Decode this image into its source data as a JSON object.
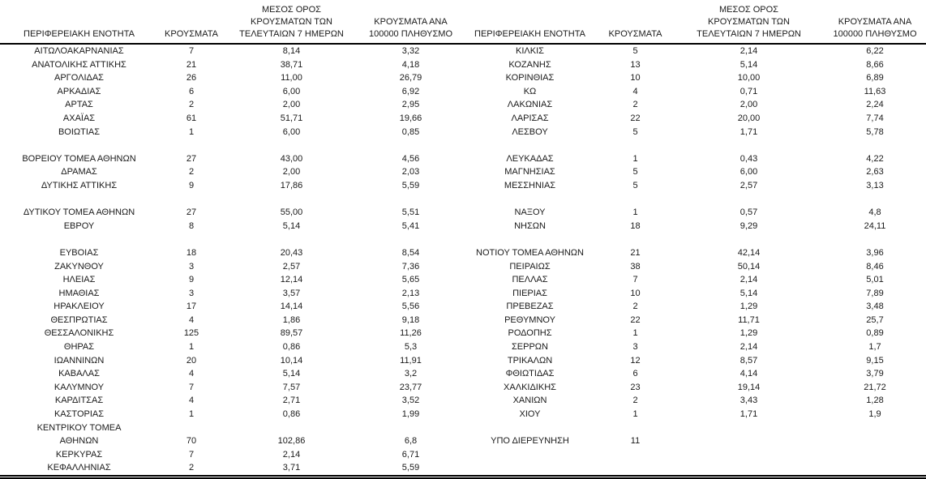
{
  "table": {
    "headers": {
      "region": "ΠΕΡΙΦΕΡΕΙΑΚΗ ΕΝΟΤΗΤΑ",
      "cases": "ΚΡΟΥΣΜΑΤΑ",
      "avg7": "ΜΕΣΟΣ ΟΡΟΣ\nΚΡΟΥΣΜΑΤΩΝ ΤΩΝ\nΤΕΛΕΥΤΑΙΩΝ 7 ΗΜΕΡΩΝ",
      "per100k": "ΚΡΟΥΣΜΑΤΑ ΑΝΑ\n100000 ΠΛΗΘΥΣΜΟ"
    },
    "left_rows": [
      [
        "ΑΙΤΩΛΟΑΚΑΡΝΑΝΙΑΣ",
        "7",
        "8,14",
        "3,32"
      ],
      [
        "ΑΝΑΤΟΛΙΚΗΣ ΑΤΤΙΚΗΣ",
        "21",
        "38,71",
        "4,18"
      ],
      [
        "ΑΡΓΟΛΙΔΑΣ",
        "26",
        "11,00",
        "26,79"
      ],
      [
        "ΑΡΚΑΔΙΑΣ",
        "6",
        "6,00",
        "6,92"
      ],
      [
        "ΑΡΤΑΣ",
        "2",
        "2,00",
        "2,95"
      ],
      [
        "ΑΧΑΪΑΣ",
        "61",
        "51,71",
        "19,66"
      ],
      [
        "ΒΟΙΩΤΙΑΣ",
        "1",
        "6,00",
        "0,85"
      ],
      [
        "",
        "",
        "",
        ""
      ],
      [
        "ΒΟΡΕΙΟΥ ΤΟΜΕΑ ΑΘΗΝΩΝ",
        "27",
        "43,00",
        "4,56"
      ],
      [
        "ΔΡΑΜΑΣ",
        "2",
        "2,00",
        "2,03"
      ],
      [
        "ΔΥΤΙΚΗΣ ΑΤΤΙΚΗΣ",
        "9",
        "17,86",
        "5,59"
      ],
      [
        "",
        "",
        "",
        ""
      ],
      [
        "ΔΥΤΙΚΟΥ ΤΟΜΕΑ ΑΘΗΝΩΝ",
        "27",
        "55,00",
        "5,51"
      ],
      [
        "ΕΒΡΟΥ",
        "8",
        "5,14",
        "5,41"
      ],
      [
        "",
        "",
        "",
        ""
      ],
      [
        "ΕΥΒΟΙΑΣ",
        "18",
        "20,43",
        "8,54"
      ],
      [
        "ΖΑΚΥΝΘΟΥ",
        "3",
        "2,57",
        "7,36"
      ],
      [
        "ΗΛΕΙΑΣ",
        "9",
        "12,14",
        "5,65"
      ],
      [
        "ΗΜΑΘΙΑΣ",
        "3",
        "3,57",
        "2,13"
      ],
      [
        "ΗΡΑΚΛΕΙΟΥ",
        "17",
        "14,14",
        "5,56"
      ],
      [
        "ΘΕΣΠΡΩΤΙΑΣ",
        "4",
        "1,86",
        "9,18"
      ],
      [
        "ΘΕΣΣΑΛΟΝΙΚΗΣ",
        "125",
        "89,57",
        "11,26"
      ],
      [
        "ΘΗΡΑΣ",
        "1",
        "0,86",
        "5,3"
      ],
      [
        "ΙΩΑΝΝΙΝΩΝ",
        "20",
        "10,14",
        "11,91"
      ],
      [
        "ΚΑΒΑΛΑΣ",
        "4",
        "5,14",
        "3,2"
      ],
      [
        "ΚΑΛΥΜΝΟΥ",
        "7",
        "7,57",
        "23,77"
      ],
      [
        "ΚΑΡΔΙΤΣΑΣ",
        "4",
        "2,71",
        "3,52"
      ],
      [
        "ΚΑΣΤΟΡΙΑΣ",
        "1",
        "0,86",
        "1,99"
      ],
      [
        "ΚΕΝΤΡΙΚΟΥ ΤΟΜΕΑ\nΑΘΗΝΩΝ",
        "70",
        "102,86",
        "6,8"
      ],
      [
        "ΚΕΡΚΥΡΑΣ",
        "7",
        "2,14",
        "6,71"
      ],
      [
        "ΚΕΦΑΛΛΗΝΙΑΣ",
        "2",
        "3,71",
        "5,59"
      ]
    ],
    "right_rows": [
      [
        "ΚΙΛΚΙΣ",
        "5",
        "2,14",
        "6,22"
      ],
      [
        "ΚΟΖΑΝΗΣ",
        "13",
        "5,14",
        "8,66"
      ],
      [
        "ΚΟΡΙΝΘΙΑΣ",
        "10",
        "10,00",
        "6,89"
      ],
      [
        "ΚΩ",
        "4",
        "0,71",
        "11,63"
      ],
      [
        "ΛΑΚΩΝΙΑΣ",
        "2",
        "2,00",
        "2,24"
      ],
      [
        "ΛΑΡΙΣΑΣ",
        "22",
        "20,00",
        "7,74"
      ],
      [
        "ΛΕΣΒΟΥ",
        "5",
        "1,71",
        "5,78"
      ],
      [
        "",
        "",
        "",
        ""
      ],
      [
        "ΛΕΥΚΑΔΑΣ",
        "1",
        "0,43",
        "4,22"
      ],
      [
        "ΜΑΓΝΗΣΙΑΣ",
        "5",
        "6,00",
        "2,63"
      ],
      [
        "ΜΕΣΣΗΝΙΑΣ",
        "5",
        "2,57",
        "3,13"
      ],
      [
        "",
        "",
        "",
        ""
      ],
      [
        "ΝΑΞΟΥ",
        "1",
        "0,57",
        "4,8"
      ],
      [
        "ΝΗΣΩΝ",
        "18",
        "9,29",
        "24,11"
      ],
      [
        "",
        "",
        "",
        ""
      ],
      [
        "ΝΟΤΙΟΥ ΤΟΜΕΑ ΑΘΗΝΩΝ",
        "21",
        "42,14",
        "3,96"
      ],
      [
        "ΠΕΙΡΑΙΩΣ",
        "38",
        "50,14",
        "8,46"
      ],
      [
        "ΠΕΛΛΑΣ",
        "7",
        "2,14",
        "5,01"
      ],
      [
        "ΠΙΕΡΙΑΣ",
        "10",
        "5,14",
        "7,89"
      ],
      [
        "ΠΡΕΒΕΖΑΣ",
        "2",
        "1,29",
        "3,48"
      ],
      [
        "ΡΕΘΥΜΝΟΥ",
        "22",
        "11,71",
        "25,7"
      ],
      [
        "ΡΟΔΟΠΗΣ",
        "1",
        "1,29",
        "0,89"
      ],
      [
        "ΣΕΡΡΩΝ",
        "3",
        "2,14",
        "1,7"
      ],
      [
        "ΤΡΙΚΑΛΩΝ",
        "12",
        "8,57",
        "9,15"
      ],
      [
        "ΦΘΙΩΤΙΔΑΣ",
        "6",
        "4,14",
        "3,79"
      ],
      [
        "ΧΑΛΚΙΔΙΚΗΣ",
        "23",
        "19,14",
        "21,72"
      ],
      [
        "ΧΑΝΙΩΝ",
        "2",
        "3,43",
        "1,28"
      ],
      [
        "ΧΙΟΥ",
        "1",
        "1,71",
        "1,9"
      ],
      [
        "ΥΠΟ ΔΙΕΡΕΥΝΗΣΗ",
        "11",
        "",
        ""
      ],
      [
        "",
        "",
        "",
        ""
      ],
      [
        "",
        "",
        "",
        ""
      ]
    ],
    "colors": {
      "text": "#1a1a1a",
      "rule": "#000000",
      "background": "#ffffff"
    }
  }
}
